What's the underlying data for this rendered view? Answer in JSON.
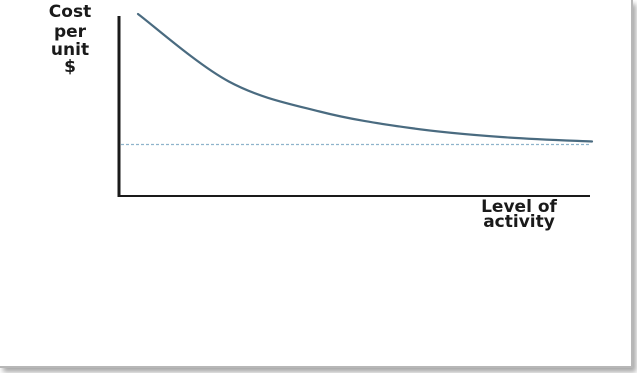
{
  "chart_data": {
    "type": "line",
    "title": "",
    "ylabel_lines": [
      "Cost",
      "per",
      "unit",
      "$"
    ],
    "xlabel_lines": [
      "Level of",
      "activity"
    ],
    "series": [
      {
        "values": [
          [
            0.0,
            1.0
          ],
          [
            0.2,
            0.55
          ],
          [
            0.4,
            0.35
          ],
          [
            0.6,
            0.24
          ],
          [
            0.8,
            0.18
          ],
          [
            1.0,
            0.15
          ]
        ]
      }
    ],
    "reference_line": {
      "style": "dashed",
      "y": 0.13
    },
    "grid": false,
    "legend": "none",
    "colors": {
      "curve": "#4a6b80",
      "reference": "#8fb4cc",
      "axes": "#1a1a1a",
      "text": "#1a1a1a"
    }
  }
}
